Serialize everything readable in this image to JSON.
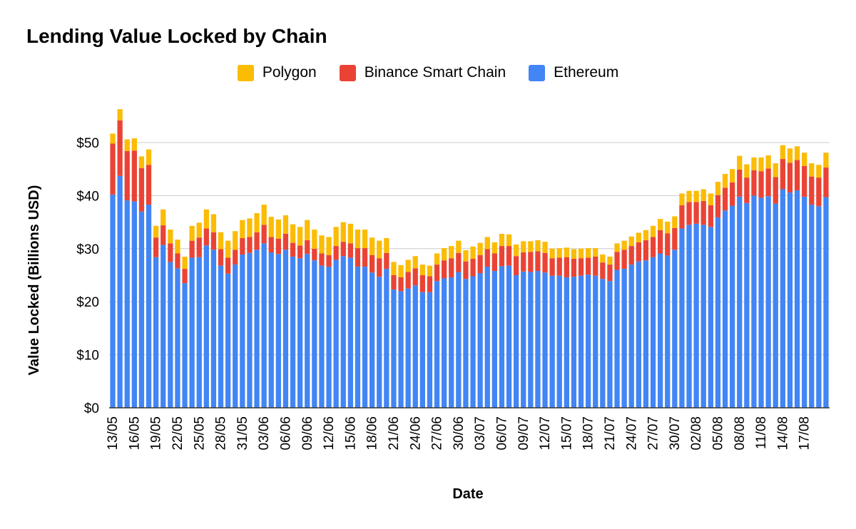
{
  "chart_data": {
    "type": "bar",
    "stacked": true,
    "title": "Lending Value Locked by Chain",
    "xlabel": "Date",
    "ylabel": "Value Locked (Billions USD)",
    "ylim": [
      0,
      55
    ],
    "yticks": [
      "$0",
      "$10",
      "$20",
      "$30",
      "$40",
      "$50"
    ],
    "ytick_values": [
      0,
      10,
      20,
      30,
      40,
      50
    ],
    "grid": true,
    "legend_position": "top",
    "xtick_labels": [
      "13/05",
      "16/05",
      "19/05",
      "22/05",
      "25/05",
      "28/05",
      "31/05",
      "03/06",
      "06/06",
      "09/06",
      "12/06",
      "15/06",
      "18/06",
      "21/06",
      "24/06",
      "27/06",
      "30/06",
      "03/07",
      "06/07",
      "09/07",
      "12/07",
      "15/07",
      "18/07",
      "21/07",
      "24/07",
      "27/07",
      "30/07",
      "02/08",
      "05/08",
      "08/08",
      "11/08",
      "14/08",
      "17/08"
    ],
    "categories": [
      "13/05",
      "14/05",
      "15/05",
      "16/05",
      "17/05",
      "18/05",
      "19/05",
      "20/05",
      "21/05",
      "22/05",
      "23/05",
      "24/05",
      "25/05",
      "26/05",
      "27/05",
      "28/05",
      "29/05",
      "30/05",
      "31/05",
      "01/06",
      "02/06",
      "03/06",
      "04/06",
      "05/06",
      "06/06",
      "07/06",
      "08/06",
      "09/06",
      "10/06",
      "11/06",
      "12/06",
      "13/06",
      "14/06",
      "15/06",
      "16/06",
      "17/06",
      "18/06",
      "19/06",
      "20/06",
      "21/06",
      "22/06",
      "23/06",
      "24/06",
      "25/06",
      "26/06",
      "27/06",
      "28/06",
      "29/06",
      "30/06",
      "01/07",
      "02/07",
      "03/07",
      "04/07",
      "05/07",
      "06/07",
      "07/07",
      "08/07",
      "09/07",
      "10/07",
      "11/07",
      "12/07",
      "13/07",
      "14/07",
      "15/07",
      "16/07",
      "17/07",
      "18/07",
      "19/07",
      "20/07",
      "21/07",
      "22/07",
      "23/07",
      "24/07",
      "25/07",
      "26/07",
      "27/07",
      "28/07",
      "29/07",
      "30/07",
      "31/07",
      "01/08",
      "02/08",
      "03/08",
      "04/08",
      "05/08",
      "06/08",
      "07/08",
      "08/08",
      "09/08",
      "10/08",
      "11/08",
      "12/08",
      "13/08",
      "14/08",
      "15/08",
      "16/08",
      "17/08",
      "18/08",
      "19/08",
      "20/08"
    ],
    "series": [
      {
        "name": "Ethereum",
        "color": "#4285f4",
        "values": [
          40.2,
          43.7,
          39.1,
          38.9,
          37.0,
          38.3,
          28.4,
          30.7,
          27.5,
          26.3,
          23.5,
          28.3,
          28.4,
          30.6,
          29.8,
          26.8,
          25.3,
          27.0,
          28.9,
          29.2,
          29.8,
          31.0,
          29.3,
          29.0,
          29.8,
          28.5,
          28.2,
          29.0,
          27.8,
          26.8,
          26.6,
          27.9,
          28.6,
          28.3,
          26.6,
          26.6,
          25.5,
          24.7,
          26.2,
          22.3,
          22.0,
          22.5,
          23.1,
          21.8,
          21.8,
          23.9,
          24.4,
          24.6,
          25.6,
          24.3,
          24.8,
          25.4,
          26.6,
          25.8,
          26.7,
          26.8,
          25.0,
          25.7,
          25.6,
          25.8,
          25.5,
          24.9,
          24.9,
          24.6,
          24.7,
          24.9,
          25.1,
          24.9,
          24.3,
          23.9,
          26.0,
          26.2,
          27.0,
          27.6,
          27.8,
          28.4,
          29.1,
          28.7,
          29.8,
          33.8,
          34.5,
          34.7,
          34.5,
          34.1,
          35.9,
          37.2,
          38.1,
          39.8,
          38.6,
          40.0,
          39.6,
          39.9,
          38.5,
          41.2,
          40.6,
          41.0,
          39.8,
          38.3,
          38.0,
          39.7
        ]
      },
      {
        "name": "Binance Smart Chain",
        "color": "#ea4335",
        "values": [
          9.6,
          10.5,
          9.3,
          9.6,
          8.2,
          7.5,
          3.7,
          3.7,
          3.5,
          2.8,
          2.7,
          3.2,
          3.7,
          3.2,
          3.3,
          3.1,
          3.0,
          2.8,
          3.1,
          3.0,
          3.3,
          3.5,
          2.9,
          2.9,
          3.0,
          2.6,
          2.4,
          2.6,
          2.2,
          2.3,
          2.2,
          2.6,
          2.7,
          2.7,
          3.5,
          3.5,
          3.3,
          3.5,
          3.0,
          2.7,
          2.6,
          3.1,
          3.2,
          3.2,
          3.0,
          3.1,
          3.4,
          3.6,
          3.6,
          3.3,
          3.3,
          3.4,
          3.3,
          3.3,
          3.8,
          3.7,
          3.6,
          3.6,
          3.8,
          3.7,
          3.7,
          3.3,
          3.4,
          3.8,
          3.4,
          3.3,
          3.2,
          3.6,
          3.1,
          3.1,
          3.4,
          3.6,
          3.5,
          3.6,
          3.8,
          3.8,
          4.4,
          4.2,
          4.1,
          4.4,
          4.3,
          4.1,
          4.5,
          4.1,
          4.2,
          4.3,
          4.4,
          5.1,
          4.8,
          4.8,
          5.0,
          5.2,
          5.0,
          5.7,
          5.6,
          5.7,
          5.8,
          5.3,
          5.4,
          5.6
        ]
      },
      {
        "name": "Polygon",
        "color": "#fbbc04",
        "values": [
          1.9,
          2.1,
          2.2,
          2.3,
          2.2,
          2.9,
          2.2,
          3.0,
          2.6,
          2.6,
          2.3,
          2.8,
          2.8,
          3.6,
          3.4,
          3.2,
          3.2,
          3.5,
          3.4,
          3.5,
          3.6,
          3.8,
          3.8,
          3.6,
          3.5,
          3.5,
          3.5,
          3.8,
          3.6,
          3.4,
          3.4,
          3.6,
          3.7,
          3.7,
          3.5,
          3.5,
          3.3,
          3.3,
          2.8,
          2.5,
          2.3,
          2.3,
          2.3,
          2.0,
          2.0,
          2.1,
          2.3,
          2.3,
          2.3,
          2.1,
          2.3,
          2.3,
          2.3,
          2.1,
          2.3,
          2.2,
          2.2,
          2.1,
          2.0,
          2.1,
          2.1,
          1.8,
          1.8,
          1.8,
          1.8,
          1.8,
          1.8,
          1.6,
          1.5,
          1.5,
          1.6,
          1.7,
          1.8,
          1.8,
          1.9,
          2.1,
          2.1,
          2.2,
          2.2,
          2.2,
          2.1,
          2.1,
          2.2,
          2.2,
          2.5,
          2.6,
          2.5,
          2.6,
          2.5,
          2.4,
          2.6,
          2.5,
          2.6,
          2.6,
          2.7,
          2.6,
          2.5,
          2.5,
          2.4,
          2.8
        ]
      }
    ]
  },
  "legend": {
    "items": [
      {
        "label": "Polygon",
        "color": "#fbbc04"
      },
      {
        "label": "Binance Smart Chain",
        "color": "#ea4335"
      },
      {
        "label": "Ethereum",
        "color": "#4285f4"
      }
    ]
  }
}
